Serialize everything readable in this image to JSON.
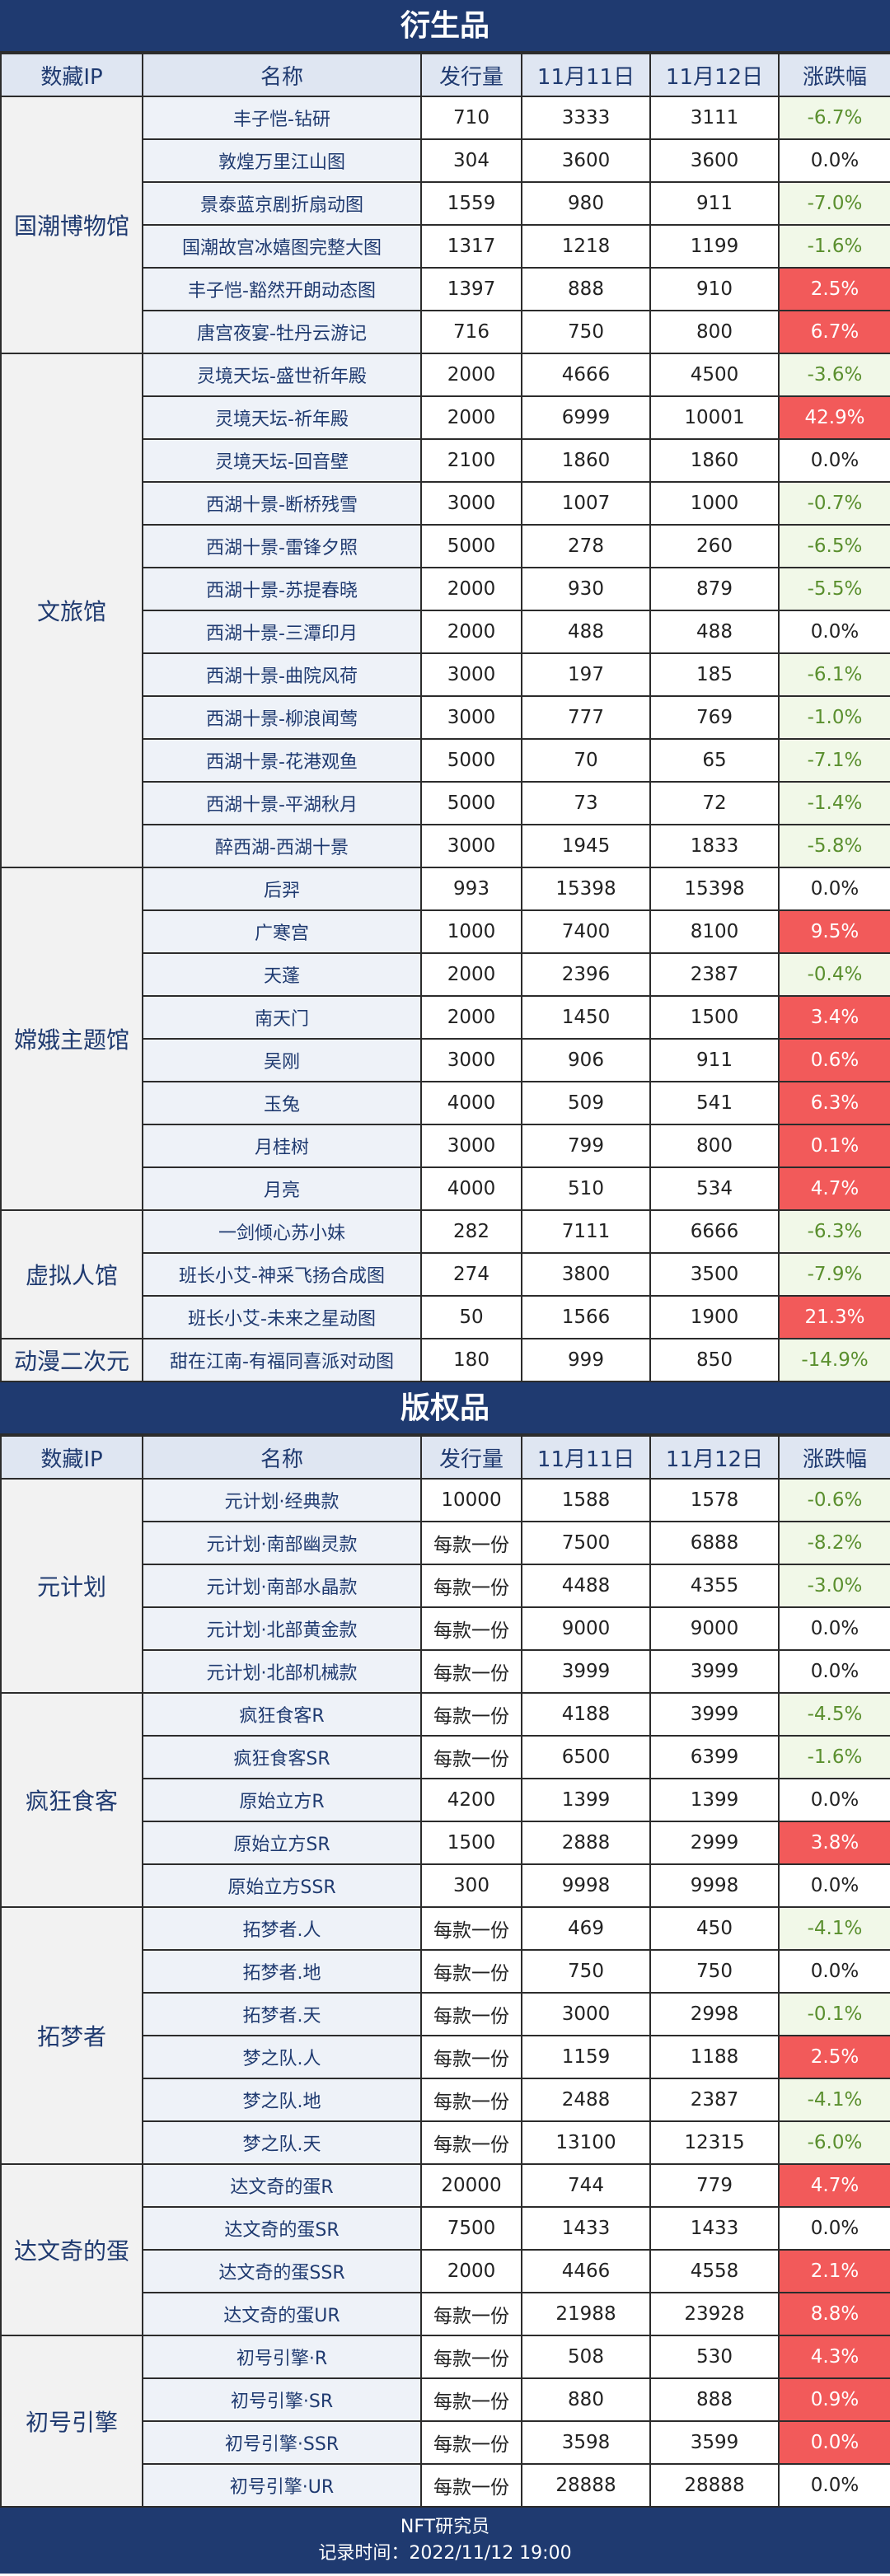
{
  "headers": [
    "数藏IP",
    "名称",
    "发行量",
    "11月11日",
    "11月12日",
    "涨跌幅"
  ],
  "colors": {
    "banner": "#1f3a70",
    "up": "#f25a5a",
    "down_bg": "#f1f8e8",
    "down_text": "#5a8f2e"
  },
  "sections": [
    {
      "title": "衍生品",
      "groups": [
        {
          "ip": "国潮博物馆",
          "rows": [
            {
              "name": "丰子恺-钻研",
              "issue": "710",
              "d11": "3333",
              "d12": "3111",
              "change": "-6.7%",
              "trend": "down"
            },
            {
              "name": "敦煌万里江山图",
              "issue": "304",
              "d11": "3600",
              "d12": "3600",
              "change": "0.0%",
              "trend": "flat"
            },
            {
              "name": "景泰蓝京剧折扇动图",
              "issue": "1559",
              "d11": "980",
              "d12": "911",
              "change": "-7.0%",
              "trend": "down"
            },
            {
              "name": "国潮故宫冰嬉图完整大图",
              "issue": "1317",
              "d11": "1218",
              "d12": "1199",
              "change": "-1.6%",
              "trend": "down"
            },
            {
              "name": "丰子恺-豁然开朗动态图",
              "issue": "1397",
              "d11": "888",
              "d12": "910",
              "change": "2.5%",
              "trend": "up"
            },
            {
              "name": "唐宫夜宴-牡丹云游记",
              "issue": "716",
              "d11": "750",
              "d12": "800",
              "change": "6.7%",
              "trend": "up"
            }
          ]
        },
        {
          "ip": "文旅馆",
          "rows": [
            {
              "name": "灵境天坛-盛世祈年殿",
              "issue": "2000",
              "d11": "4666",
              "d12": "4500",
              "change": "-3.6%",
              "trend": "down"
            },
            {
              "name": "灵境天坛-祈年殿",
              "issue": "2000",
              "d11": "6999",
              "d12": "10001",
              "change": "42.9%",
              "trend": "up"
            },
            {
              "name": "灵境天坛-回音壁",
              "issue": "2100",
              "d11": "1860",
              "d12": "1860",
              "change": "0.0%",
              "trend": "flat"
            },
            {
              "name": "西湖十景-断桥残雪",
              "issue": "3000",
              "d11": "1007",
              "d12": "1000",
              "change": "-0.7%",
              "trend": "down"
            },
            {
              "name": "西湖十景-雷锋夕照",
              "issue": "5000",
              "d11": "278",
              "d12": "260",
              "change": "-6.5%",
              "trend": "down"
            },
            {
              "name": "西湖十景-苏提春晓",
              "issue": "2000",
              "d11": "930",
              "d12": "879",
              "change": "-5.5%",
              "trend": "down"
            },
            {
              "name": "西湖十景-三潭印月",
              "issue": "2000",
              "d11": "488",
              "d12": "488",
              "change": "0.0%",
              "trend": "flat"
            },
            {
              "name": "西湖十景-曲院风荷",
              "issue": "3000",
              "d11": "197",
              "d12": "185",
              "change": "-6.1%",
              "trend": "down"
            },
            {
              "name": "西湖十景-柳浪闻莺",
              "issue": "3000",
              "d11": "777",
              "d12": "769",
              "change": "-1.0%",
              "trend": "down"
            },
            {
              "name": "西湖十景-花港观鱼",
              "issue": "5000",
              "d11": "70",
              "d12": "65",
              "change": "-7.1%",
              "trend": "down"
            },
            {
              "name": "西湖十景-平湖秋月",
              "issue": "5000",
              "d11": "73",
              "d12": "72",
              "change": "-1.4%",
              "trend": "down"
            },
            {
              "name": "醉西湖-西湖十景",
              "issue": "3000",
              "d11": "1945",
              "d12": "1833",
              "change": "-5.8%",
              "trend": "down"
            }
          ]
        },
        {
          "ip": "嫦娥主题馆",
          "rows": [
            {
              "name": "后羿",
              "issue": "993",
              "d11": "15398",
              "d12": "15398",
              "change": "0.0%",
              "trend": "flat"
            },
            {
              "name": "广寒宫",
              "issue": "1000",
              "d11": "7400",
              "d12": "8100",
              "change": "9.5%",
              "trend": "up"
            },
            {
              "name": "天蓬",
              "issue": "2000",
              "d11": "2396",
              "d12": "2387",
              "change": "-0.4%",
              "trend": "down"
            },
            {
              "name": "南天门",
              "issue": "2000",
              "d11": "1450",
              "d12": "1500",
              "change": "3.4%",
              "trend": "up"
            },
            {
              "name": "吴刚",
              "issue": "3000",
              "d11": "906",
              "d12": "911",
              "change": "0.6%",
              "trend": "up"
            },
            {
              "name": "玉兔",
              "issue": "4000",
              "d11": "509",
              "d12": "541",
              "change": "6.3%",
              "trend": "up"
            },
            {
              "name": "月桂树",
              "issue": "3000",
              "d11": "799",
              "d12": "800",
              "change": "0.1%",
              "trend": "up"
            },
            {
              "name": "月亮",
              "issue": "4000",
              "d11": "510",
              "d12": "534",
              "change": "4.7%",
              "trend": "up"
            }
          ]
        },
        {
          "ip": "虚拟人馆",
          "rows": [
            {
              "name": "一剑倾心苏小妹",
              "issue": "282",
              "d11": "7111",
              "d12": "6666",
              "change": "-6.3%",
              "trend": "down"
            },
            {
              "name": "班长小艾-神采飞扬合成图",
              "issue": "274",
              "d11": "3800",
              "d12": "3500",
              "change": "-7.9%",
              "trend": "down"
            },
            {
              "name": "班长小艾-未来之星动图",
              "issue": "50",
              "d11": "1566",
              "d12": "1900",
              "change": "21.3%",
              "trend": "up"
            }
          ]
        },
        {
          "ip": "动漫二次元",
          "rows": [
            {
              "name": "甜在江南-有福同喜派对动图",
              "issue": "180",
              "d11": "999",
              "d12": "850",
              "change": "-14.9%",
              "trend": "down"
            }
          ]
        }
      ]
    },
    {
      "title": "版权品",
      "groups": [
        {
          "ip": "元计划",
          "rows": [
            {
              "name": "元计划·经典款",
              "issue": "10000",
              "d11": "1588",
              "d12": "1578",
              "change": "-0.6%",
              "trend": "down"
            },
            {
              "name": "元计划·南部幽灵款",
              "issue": "每款一份",
              "d11": "7500",
              "d12": "6888",
              "change": "-8.2%",
              "trend": "down"
            },
            {
              "name": "元计划·南部水晶款",
              "issue": "每款一份",
              "d11": "4488",
              "d12": "4355",
              "change": "-3.0%",
              "trend": "down"
            },
            {
              "name": "元计划·北部黄金款",
              "issue": "每款一份",
              "d11": "9000",
              "d12": "9000",
              "change": "0.0%",
              "trend": "flat"
            },
            {
              "name": "元计划·北部机械款",
              "issue": "每款一份",
              "d11": "3999",
              "d12": "3999",
              "change": "0.0%",
              "trend": "flat"
            }
          ]
        },
        {
          "ip": "疯狂食客",
          "rows": [
            {
              "name": "疯狂食客R",
              "issue": "每款一份",
              "d11": "4188",
              "d12": "3999",
              "change": "-4.5%",
              "trend": "down"
            },
            {
              "name": "疯狂食客SR",
              "issue": "每款一份",
              "d11": "6500",
              "d12": "6399",
              "change": "-1.6%",
              "trend": "down"
            },
            {
              "name": "原始立方R",
              "issue": "4200",
              "d11": "1399",
              "d12": "1399",
              "change": "0.0%",
              "trend": "flat"
            },
            {
              "name": "原始立方SR",
              "issue": "1500",
              "d11": "2888",
              "d12": "2999",
              "change": "3.8%",
              "trend": "up"
            },
            {
              "name": "原始立方SSR",
              "issue": "300",
              "d11": "9998",
              "d12": "9998",
              "change": "0.0%",
              "trend": "flat"
            }
          ]
        },
        {
          "ip": "拓梦者",
          "rows": [
            {
              "name": "拓梦者.人",
              "issue": "每款一份",
              "d11": "469",
              "d12": "450",
              "change": "-4.1%",
              "trend": "down"
            },
            {
              "name": "拓梦者.地",
              "issue": "每款一份",
              "d11": "750",
              "d12": "750",
              "change": "0.0%",
              "trend": "flat"
            },
            {
              "name": "拓梦者.天",
              "issue": "每款一份",
              "d11": "3000",
              "d12": "2998",
              "change": "-0.1%",
              "trend": "down"
            },
            {
              "name": "梦之队.人",
              "issue": "每款一份",
              "d11": "1159",
              "d12": "1188",
              "change": "2.5%",
              "trend": "up"
            },
            {
              "name": "梦之队.地",
              "issue": "每款一份",
              "d11": "2488",
              "d12": "2387",
              "change": "-4.1%",
              "trend": "down"
            },
            {
              "name": "梦之队.天",
              "issue": "每款一份",
              "d11": "13100",
              "d12": "12315",
              "change": "-6.0%",
              "trend": "down"
            }
          ]
        },
        {
          "ip": "达文奇的蛋",
          "rows": [
            {
              "name": "达文奇的蛋R",
              "issue": "20000",
              "d11": "744",
              "d12": "779",
              "change": "4.7%",
              "trend": "up"
            },
            {
              "name": "达文奇的蛋SR",
              "issue": "7500",
              "d11": "1433",
              "d12": "1433",
              "change": "0.0%",
              "trend": "flat"
            },
            {
              "name": "达文奇的蛋SSR",
              "issue": "2000",
              "d11": "4466",
              "d12": "4558",
              "change": "2.1%",
              "trend": "up"
            },
            {
              "name": "达文奇的蛋UR",
              "issue": "每款一份",
              "d11": "21988",
              "d12": "23928",
              "change": "8.8%",
              "trend": "up"
            }
          ]
        },
        {
          "ip": "初号引擎",
          "rows": [
            {
              "name": "初号引擎·R",
              "issue": "每款一份",
              "d11": "508",
              "d12": "530",
              "change": "4.3%",
              "trend": "up"
            },
            {
              "name": "初号引擎·SR",
              "issue": "每款一份",
              "d11": "880",
              "d12": "888",
              "change": "0.9%",
              "trend": "up"
            },
            {
              "name": "初号引擎·SSR",
              "issue": "每款一份",
              "d11": "3598",
              "d12": "3599",
              "change": "0.0%",
              "trend": "up"
            },
            {
              "name": "初号引擎·UR",
              "issue": "每款一份",
              "d11": "28888",
              "d12": "28888",
              "change": "0.0%",
              "trend": "flat"
            }
          ]
        }
      ]
    }
  ],
  "footer": {
    "line1": "NFT研究员",
    "line2": "记录时间：2022/11/12 19:00"
  }
}
